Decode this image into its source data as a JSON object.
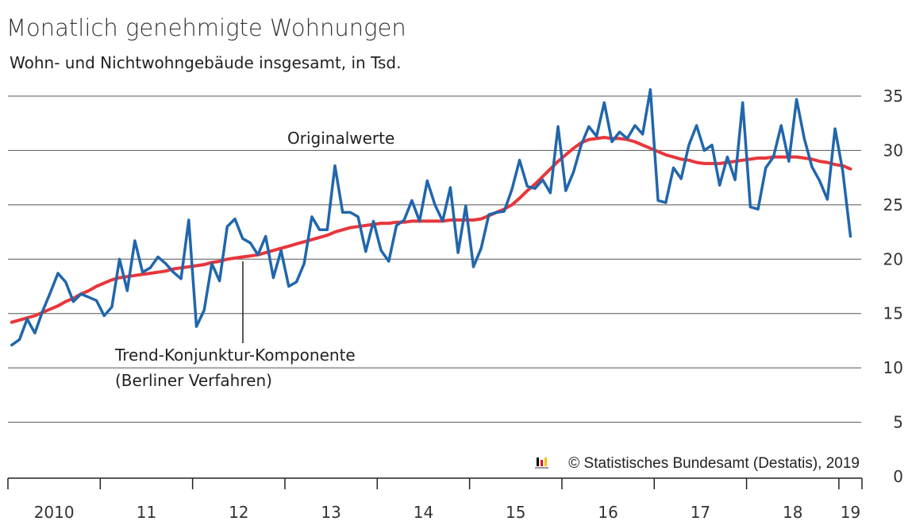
{
  "title": "Monatlich genehmigte Wohnungen",
  "subtitle": "Wohn- und Nichtwohngebäude insgesamt, in Tsd.",
  "credit": "© Statistisches Bundesamt (Destatis), 2019",
  "colors": {
    "original": "#2166ac",
    "trend": "#e8363b",
    "grid": "#555555",
    "logo": [
      "#000000",
      "#d7191c",
      "#f5c400"
    ]
  },
  "chart_data": {
    "type": "line",
    "ylim": [
      0,
      35
    ],
    "y_ticks": [
      0,
      5,
      10,
      15,
      20,
      25,
      30,
      35
    ],
    "x_tick_labels": [
      "2010",
      "11",
      "12",
      "13",
      "14",
      "15",
      "16",
      "17",
      "18",
      "19"
    ],
    "x_range_years": [
      2010,
      2019.25
    ],
    "annotations": [
      {
        "text": "Originalwerte",
        "series": "original"
      },
      {
        "text": "Trend-Konjunktur-Komponente",
        "series": "trend"
      },
      {
        "text": "(Berliner Verfahren)",
        "series": "trend"
      }
    ],
    "series": [
      {
        "id": "original",
        "values": [
          12.1,
          12.6,
          14.5,
          13.2,
          15.2,
          16.9,
          18.7,
          17.9,
          16.1,
          16.8,
          16.5,
          16.2,
          14.8,
          15.6,
          20.0,
          17.1,
          21.7,
          18.8,
          19.2,
          20.2,
          19.6,
          18.8,
          18.2,
          23.6,
          13.8,
          15.3,
          19.6,
          18.0,
          23.0,
          23.7,
          21.9,
          21.5,
          20.4,
          22.1,
          18.3,
          20.8,
          17.5,
          17.9,
          19.6,
          23.9,
          22.7,
          22.7,
          28.6,
          24.3,
          24.3,
          23.9,
          20.7,
          23.5,
          20.8,
          19.8,
          23.1,
          23.6,
          25.4,
          23.5,
          27.2,
          25.0,
          23.5,
          26.6,
          20.6,
          24.9,
          19.3,
          21.0,
          24.1,
          24.3,
          24.4,
          26.4,
          29.1,
          26.7,
          26.5,
          27.3,
          26.1,
          32.2,
          26.3,
          28.0,
          30.5,
          32.2,
          31.3,
          34.4,
          30.8,
          31.7,
          31.1,
          32.3,
          31.5,
          35.6,
          25.4,
          25.2,
          28.4,
          27.4,
          30.5,
          32.3,
          30.0,
          30.5,
          26.8,
          29.4,
          27.3,
          34.4,
          24.8,
          24.6,
          28.4,
          29.4,
          32.3,
          29.0,
          34.7,
          31.1,
          28.5,
          27.2,
          25.5,
          32.0,
          28.1,
          22.1
        ]
      },
      {
        "id": "trend",
        "values": [
          14.2,
          14.4,
          14.6,
          14.8,
          15.1,
          15.4,
          15.7,
          16.1,
          16.4,
          16.8,
          17.1,
          17.5,
          17.8,
          18.1,
          18.3,
          18.4,
          18.5,
          18.6,
          18.7,
          18.8,
          18.9,
          19.1,
          19.2,
          19.3,
          19.4,
          19.5,
          19.7,
          19.8,
          20.0,
          20.1,
          20.2,
          20.3,
          20.4,
          20.6,
          20.8,
          21.0,
          21.2,
          21.4,
          21.6,
          21.8,
          22.0,
          22.2,
          22.5,
          22.7,
          22.9,
          23.0,
          23.1,
          23.2,
          23.3,
          23.3,
          23.4,
          23.4,
          23.5,
          23.5,
          23.5,
          23.5,
          23.5,
          23.6,
          23.6,
          23.6,
          23.6,
          23.7,
          24.0,
          24.3,
          24.6,
          25.0,
          25.6,
          26.3,
          26.9,
          27.6,
          28.3,
          29.0,
          29.6,
          30.2,
          30.7,
          31.0,
          31.1,
          31.2,
          31.1,
          31.1,
          31.0,
          30.8,
          30.5,
          30.2,
          29.9,
          29.6,
          29.4,
          29.2,
          29.1,
          28.9,
          28.8,
          28.8,
          28.8,
          28.9,
          29.0,
          29.1,
          29.2,
          29.3,
          29.3,
          29.4,
          29.4,
          29.4,
          29.4,
          29.3,
          29.2,
          29.0,
          28.9,
          28.7,
          28.6,
          28.3
        ]
      }
    ]
  }
}
